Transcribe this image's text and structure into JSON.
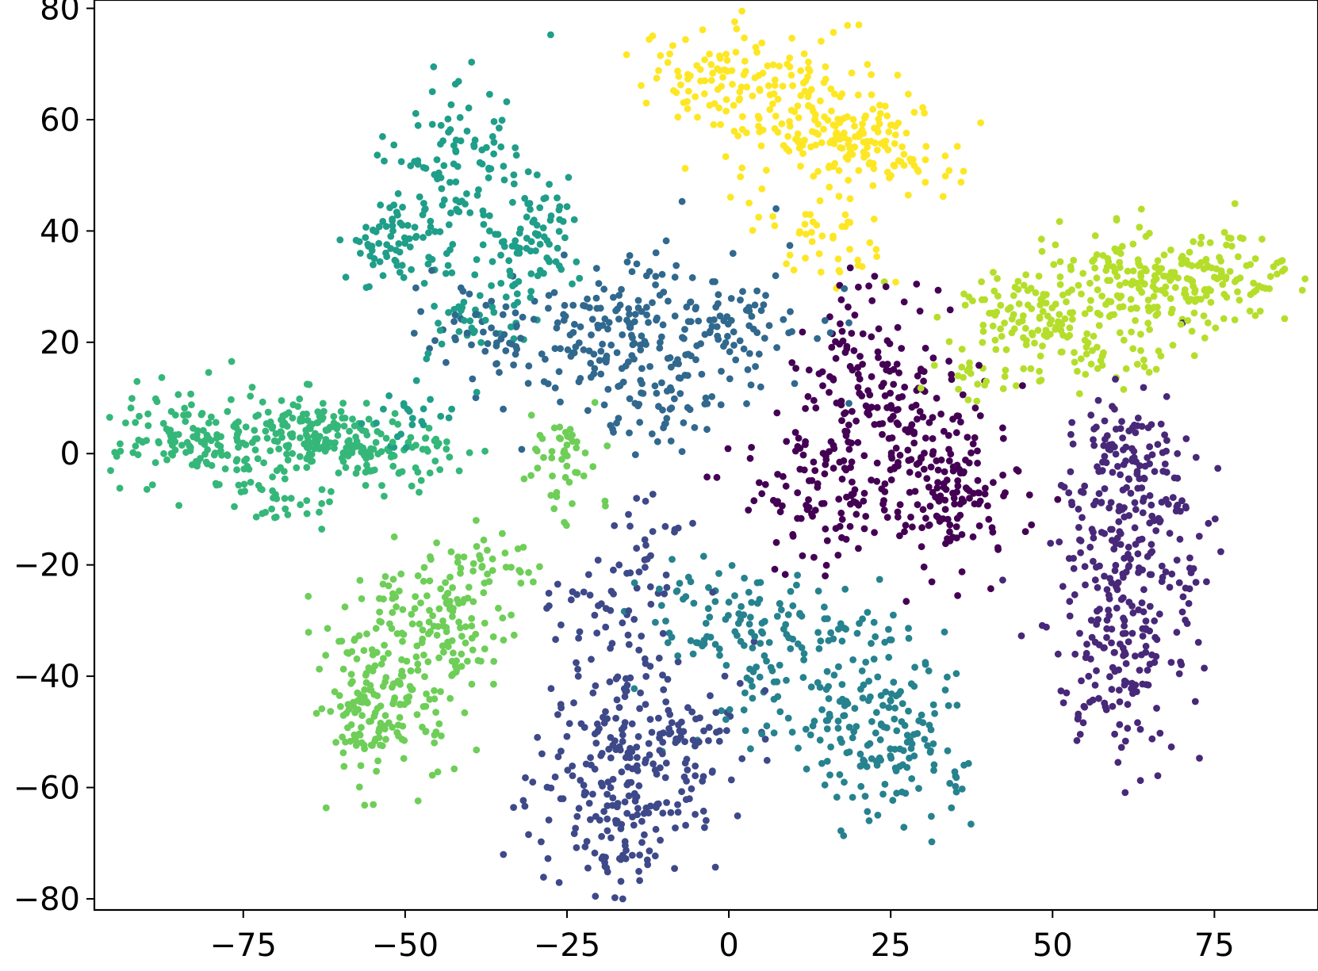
{
  "chart_data": {
    "type": "scatter",
    "title": "",
    "xlabel": "",
    "ylabel": "",
    "xlim": [
      -98,
      91
    ],
    "ylim": [
      -82,
      81.5
    ],
    "xticks": [
      -75,
      -50,
      -25,
      0,
      25,
      50,
      75
    ],
    "yticks": [
      -80,
      -60,
      -40,
      -20,
      0,
      20,
      40,
      60,
      80
    ],
    "xtick_labels": [
      "−75",
      "−50",
      "−25",
      "0",
      "25",
      "50",
      "75"
    ],
    "ytick_labels": [
      "−80",
      "−60",
      "−40",
      "−20",
      "0",
      "20",
      "40",
      "60",
      "80"
    ],
    "grid": false,
    "legend": "none",
    "colormap": "viridis",
    "series": [
      {
        "color": "#440154",
        "cx": 25,
        "cy": -2,
        "sx": 10,
        "sy": 9,
        "n": 420,
        "blobs": [
          [
            25,
            -3,
            1.0
          ],
          [
            34,
            -8,
            0.35
          ],
          [
            20,
            15,
            0.3
          ],
          [
            10,
            -8,
            0.25
          ],
          [
            24,
            25,
            0.15
          ],
          [
            30,
            8,
            0.2
          ]
        ]
      },
      {
        "color": "#482878",
        "cx": 62,
        "cy": -25,
        "sx": 6,
        "sy": 13,
        "n": 380,
        "blobs": [
          [
            62,
            -25,
            1.0
          ],
          [
            64,
            -5,
            0.4
          ],
          [
            60,
            -40,
            0.3
          ],
          [
            58,
            0,
            0.2
          ]
        ]
      },
      {
        "color": "#3e4989",
        "cx": -15,
        "cy": -55,
        "sx": 8,
        "sy": 10,
        "n": 360,
        "blobs": [
          [
            -15,
            -55,
            1.0
          ],
          [
            -16,
            -67,
            0.35
          ],
          [
            -20,
            -30,
            0.2
          ],
          [
            -12,
            -18,
            0.15
          ],
          [
            -5,
            -52,
            0.15
          ]
        ]
      },
      {
        "color": "#31688e",
        "cx": -5,
        "cy": 18,
        "sx": 10,
        "sy": 8,
        "n": 340,
        "blobs": [
          [
            -5,
            22,
            1.0
          ],
          [
            -18,
            25,
            0.5
          ],
          [
            -25,
            18,
            0.35
          ],
          [
            -10,
            8,
            0.3
          ],
          [
            -38,
            22,
            0.3
          ]
        ]
      },
      {
        "color": "#26828e",
        "cx": 15,
        "cy": -45,
        "sx": 10,
        "sy": 9,
        "n": 340,
        "blobs": [
          [
            15,
            -42,
            1.0
          ],
          [
            25,
            -52,
            0.5
          ],
          [
            5,
            -30,
            0.35
          ],
          [
            -5,
            -28,
            0.25
          ],
          [
            28,
            -60,
            0.2
          ]
        ]
      },
      {
        "color": "#1f9e89",
        "cx": -42,
        "cy": 45,
        "sx": 6,
        "sy": 8,
        "n": 320,
        "blobs": [
          [
            -42,
            50,
            1.0
          ],
          [
            -52,
            38,
            0.5
          ],
          [
            -30,
            38,
            0.45
          ],
          [
            -38,
            25,
            0.35
          ],
          [
            -50,
            8,
            0.15
          ]
        ]
      },
      {
        "color": "#35b779",
        "cx": -72,
        "cy": 2,
        "sx": 9,
        "sy": 5,
        "n": 400,
        "blobs": [
          [
            -75,
            2,
            1.0
          ],
          [
            -62,
            3,
            0.6
          ],
          [
            -85,
            3,
            0.35
          ],
          [
            -52,
            0,
            0.35
          ],
          [
            -68,
            -8,
            0.25
          ]
        ]
      },
      {
        "color": "#6ece58",
        "cx": -50,
        "cy": -38,
        "sx": 6,
        "sy": 9,
        "n": 380,
        "blobs": [
          [
            -50,
            -38,
            1.0
          ],
          [
            -56,
            -48,
            0.4
          ],
          [
            -42,
            -28,
            0.35
          ],
          [
            -35,
            -18,
            0.2
          ],
          [
            -25,
            0,
            0.3
          ]
        ]
      },
      {
        "color": "#b5de2b",
        "cx": 58,
        "cy": 30,
        "sx": 10,
        "sy": 6,
        "n": 400,
        "blobs": [
          [
            58,
            28,
            1.0
          ],
          [
            70,
            33,
            0.55
          ],
          [
            78,
            31,
            0.3
          ],
          [
            45,
            25,
            0.35
          ],
          [
            38,
            15,
            0.2
          ],
          [
            55,
            18,
            0.2
          ]
        ]
      },
      {
        "color": "#fde725",
        "cx": 10,
        "cy": 62,
        "sx": 9,
        "sy": 6,
        "n": 360,
        "blobs": [
          [
            8,
            63,
            1.0
          ],
          [
            18,
            57,
            0.6
          ],
          [
            -3,
            70,
            0.35
          ],
          [
            28,
            53,
            0.3
          ],
          [
            18,
            35,
            0.15
          ],
          [
            14,
            42,
            0.15
          ]
        ]
      }
    ]
  }
}
